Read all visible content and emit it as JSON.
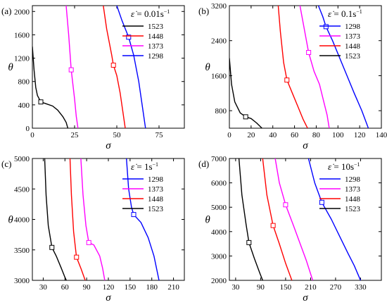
{
  "colors": {
    "1298": "#0000ff",
    "1373": "#ff00ff",
    "1448": "#ff0000",
    "1523": "#000000"
  },
  "chart_data": [
    {
      "type": "line",
      "panel_label": "(a)",
      "xlabel": "σ",
      "ylabel": "θ",
      "legend_title": {
        "sym": "ε̇",
        "text": " = 0.01s",
        "sup": "−1"
      },
      "legend_placement": "top-right",
      "legend_order": [
        "1523",
        "1448",
        "1373",
        "1298"
      ],
      "xlim": [
        0,
        90
      ],
      "ylim": [
        0,
        2100
      ],
      "xticks": [
        0,
        25,
        50,
        75
      ],
      "yticks": [
        0,
        400,
        800,
        1200,
        1600,
        2000
      ],
      "series": [
        {
          "name": "1523",
          "marker": [
            5,
            450
          ],
          "points": [
            [
              0,
              1400
            ],
            [
              1,
              1000
            ],
            [
              2,
              700
            ],
            [
              3,
              560
            ],
            [
              5,
              450
            ],
            [
              8,
              420
            ],
            [
              12,
              380
            ],
            [
              15,
              310
            ],
            [
              18,
              200
            ],
            [
              20,
              100
            ],
            [
              21,
              0
            ]
          ]
        },
        {
          "name": "1448",
          "marker": [
            48,
            1080
          ],
          "points": [
            [
              42,
              2100
            ],
            [
              44,
              1700
            ],
            [
              47,
              1250
            ],
            [
              48,
              1080
            ],
            [
              50,
              900
            ],
            [
              52,
              600
            ],
            [
              53.5,
              300
            ],
            [
              55,
              0
            ]
          ]
        },
        {
          "name": "1373",
          "marker": [
            23,
            1000
          ],
          "points": [
            [
              20,
              2100
            ],
            [
              21.5,
              1600
            ],
            [
              23,
              1000
            ],
            [
              25,
              500
            ],
            [
              26,
              200
            ],
            [
              27,
              0
            ]
          ]
        },
        {
          "name": "1298",
          "marker": [
            57,
            1560
          ],
          "points": [
            [
              50,
              2100
            ],
            [
              53,
              1850
            ],
            [
              57,
              1560
            ],
            [
              60,
              1250
            ],
            [
              63,
              800
            ],
            [
              65,
              400
            ],
            [
              67,
              0
            ]
          ]
        }
      ]
    },
    {
      "type": "line",
      "panel_label": "(b)",
      "xlabel": "σ",
      "ylabel": "θ",
      "legend_title": {
        "sym": "ε̇",
        "text": " = 0.1s",
        "sup": "−1"
      },
      "legend_placement": "top-right",
      "legend_order": [
        "1298",
        "1373",
        "1448",
        "1523"
      ],
      "xlim": [
        0,
        140
      ],
      "ylim": [
        400,
        3200
      ],
      "xticks": [
        0,
        20,
        40,
        60,
        80,
        100,
        120,
        140
      ],
      "yticks": [
        800,
        1600,
        2400,
        3200
      ],
      "series": [
        {
          "name": "1298",
          "marker": [
            89,
            2720
          ],
          "points": [
            [
              82,
              3200
            ],
            [
              86,
              2950
            ],
            [
              89,
              2720
            ],
            [
              95,
              2400
            ],
            [
              105,
              1800
            ],
            [
              115,
              1200
            ],
            [
              122,
              800
            ],
            [
              128,
              400
            ]
          ]
        },
        {
          "name": "1373",
          "marker": [
            73,
            2130
          ],
          "points": [
            [
              65,
              3200
            ],
            [
              68,
              2800
            ],
            [
              73,
              2130
            ],
            [
              78,
              1700
            ],
            [
              83,
              1400
            ],
            [
              87,
              1000
            ],
            [
              90,
              700
            ],
            [
              92,
              400
            ]
          ]
        },
        {
          "name": "1448",
          "marker": [
            53,
            1500
          ],
          "points": [
            [
              45,
              3200
            ],
            [
              47,
              2600
            ],
            [
              50,
              1900
            ],
            [
              53,
              1500
            ],
            [
              58,
              1200
            ],
            [
              63,
              900
            ],
            [
              68,
              600
            ],
            [
              72,
              400
            ]
          ]
        },
        {
          "name": "1523",
          "marker": [
            15,
            660
          ],
          "points": [
            [
              0,
              2000
            ],
            [
              2,
              1400
            ],
            [
              5,
              1000
            ],
            [
              10,
              750
            ],
            [
              15,
              660
            ],
            [
              20,
              620
            ],
            [
              25,
              520
            ],
            [
              30,
              400
            ]
          ]
        }
      ]
    },
    {
      "type": "line",
      "panel_label": "(c)",
      "xlabel": "σ",
      "ylabel": "θ",
      "legend_title": {
        "sym": "ε̇",
        "text": " = 1s",
        "sup": "−1"
      },
      "legend_placement": "top-right",
      "legend_order": [
        "1298",
        "1373",
        "1448",
        "1523"
      ],
      "xlim": [
        15,
        225
      ],
      "ylim": [
        3000,
        5000
      ],
      "xticks": [
        30,
        60,
        90,
        120,
        150,
        180,
        210
      ],
      "yticks": [
        3000,
        3500,
        4000,
        4500,
        5000
      ],
      "series": [
        {
          "name": "1298",
          "marker": [
            155,
            4080
          ],
          "points": [
            [
              145,
              5000
            ],
            [
              148,
              4500
            ],
            [
              152,
              4200
            ],
            [
              155,
              4080
            ],
            [
              165,
              3950
            ],
            [
              175,
              3700
            ],
            [
              183,
              3400
            ],
            [
              190,
              3000
            ]
          ]
        },
        {
          "name": "1373",
          "marker": [
            93,
            3620
          ],
          "points": [
            [
              82,
              5000
            ],
            [
              85,
              4400
            ],
            [
              89,
              3900
            ],
            [
              93,
              3620
            ],
            [
              100,
              3580
            ],
            [
              108,
              3400
            ],
            [
              112,
              3200
            ],
            [
              115,
              3000
            ]
          ]
        },
        {
          "name": "1448",
          "marker": [
            76,
            3380
          ],
          "points": [
            [
              67,
              5000
            ],
            [
              69,
              4400
            ],
            [
              72,
              3800
            ],
            [
              76,
              3380
            ],
            [
              82,
              3200
            ],
            [
              88,
              3000
            ]
          ]
        },
        {
          "name": "1523",
          "marker": [
            42,
            3540
          ],
          "points": [
            [
              32,
              5000
            ],
            [
              34,
              4400
            ],
            [
              37,
              3900
            ],
            [
              42,
              3540
            ],
            [
              48,
              3400
            ],
            [
              55,
              3200
            ],
            [
              60,
              3050
            ],
            [
              62,
              3000
            ]
          ]
        }
      ]
    },
    {
      "type": "line",
      "panel_label": "(d)",
      "xlabel": "σ",
      "ylabel": "θ",
      "legend_title": {
        "sym": "ε̇",
        "text": " = 10s",
        "sup": "−1"
      },
      "legend_placement": "top-right",
      "legend_order": [
        "1298",
        "1373",
        "1448",
        "1523"
      ],
      "xlim": [
        15,
        380
      ],
      "ylim": [
        2000,
        7000
      ],
      "xticks": [
        30,
        90,
        150,
        210,
        270,
        330
      ],
      "yticks": [
        2000,
        3000,
        4000,
        5000,
        6000,
        7000
      ],
      "series": [
        {
          "name": "1298",
          "marker": [
            237,
            5200
          ],
          "points": [
            [
              205,
              7000
            ],
            [
              220,
              6000
            ],
            [
              237,
              5200
            ],
            [
              260,
              4500
            ],
            [
              280,
              3800
            ],
            [
              300,
              3100
            ],
            [
              315,
              2600
            ],
            [
              330,
              2000
            ]
          ]
        },
        {
          "name": "1373",
          "marker": [
            150,
            5100
          ],
          "points": [
            [
              125,
              7000
            ],
            [
              135,
              6000
            ],
            [
              150,
              5100
            ],
            [
              170,
              4200
            ],
            [
              185,
              3500
            ],
            [
              200,
              2800
            ],
            [
              215,
              2000
            ]
          ]
        },
        {
          "name": "1448",
          "marker": [
            120,
            4250
          ],
          "points": [
            [
              95,
              7000
            ],
            [
              105,
              5500
            ],
            [
              120,
              4250
            ],
            [
              135,
              3500
            ],
            [
              150,
              2700
            ],
            [
              165,
              2000
            ]
          ]
        },
        {
          "name": "1523",
          "marker": [
            62,
            3550
          ],
          "points": [
            [
              38,
              7000
            ],
            [
              45,
              5500
            ],
            [
              55,
              4300
            ],
            [
              62,
              3550
            ],
            [
              75,
              2900
            ],
            [
              88,
              2300
            ],
            [
              95,
              2000
            ]
          ]
        }
      ]
    }
  ]
}
